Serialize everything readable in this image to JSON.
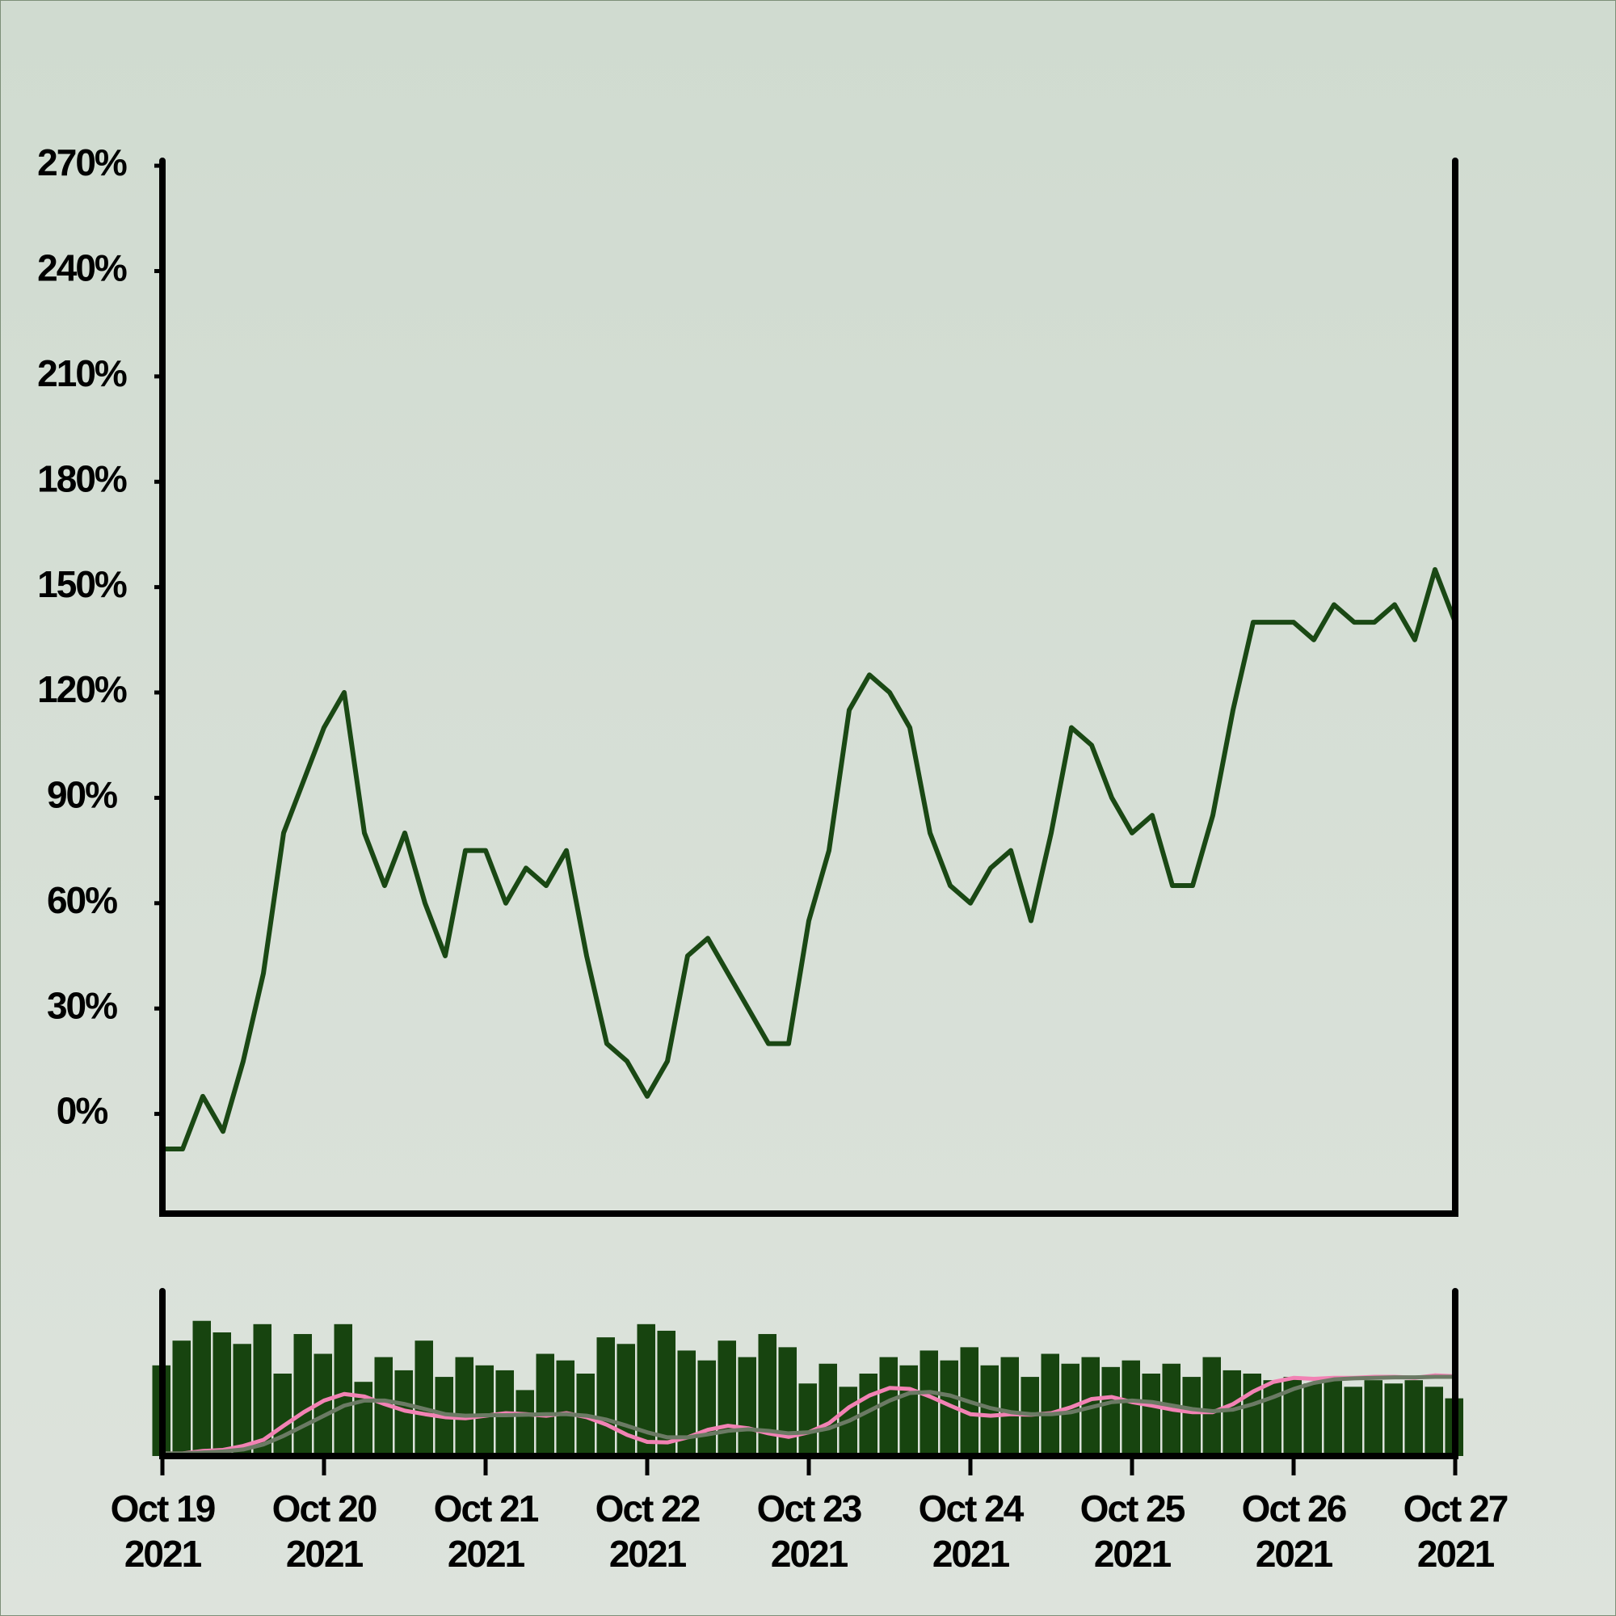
{
  "chart_data": [
    {
      "type": "line",
      "categories": [
        "Oct 19 2021",
        null,
        null,
        null,
        null,
        null,
        null,
        null,
        "Oct 20 2021",
        null,
        null,
        null,
        null,
        null,
        null,
        null,
        "Oct 21 2021",
        null,
        null,
        null,
        null,
        null,
        null,
        null,
        "Oct 22 2021",
        null,
        null,
        null,
        null,
        null,
        null,
        null,
        "Oct 23 2021",
        null,
        null,
        null,
        null,
        null,
        null,
        null,
        "Oct 24 2021",
        null,
        null,
        null,
        null,
        null,
        null,
        null,
        "Oct 25 2021",
        null,
        null,
        null,
        null,
        null,
        null,
        null,
        "Oct 26 2021",
        null,
        null,
        null,
        null,
        null,
        null,
        null,
        "Oct 27 2021"
      ],
      "values": [
        -10,
        -10,
        5,
        -5,
        15,
        40,
        80,
        95,
        110,
        120,
        80,
        65,
        80,
        60,
        45,
        75,
        75,
        60,
        70,
        65,
        75,
        45,
        20,
        15,
        5,
        15,
        45,
        50,
        40,
        30,
        20,
        20,
        55,
        75,
        115,
        125,
        120,
        110,
        80,
        65,
        60,
        70,
        75,
        55,
        80,
        110,
        105,
        90,
        80,
        85,
        65,
        65,
        85,
        115,
        140,
        140,
        140,
        135,
        145,
        140,
        140,
        145,
        135,
        155,
        140
      ],
      "color": "#1a4814",
      "ylim": [
        -28.4,
        271.4
      ],
      "yticks": [
        {
          "value": 0,
          "label": "0%"
        },
        {
          "value": 30,
          "label": "30%"
        },
        {
          "value": 60,
          "label": "60%"
        },
        {
          "value": 90,
          "label": "90%"
        },
        {
          "value": 120,
          "label": "120%"
        },
        {
          "value": 150,
          "label": "150%"
        },
        {
          "value": 180,
          "label": "180%"
        },
        {
          "value": 210,
          "label": "210%"
        },
        {
          "value": 240,
          "label": "240%"
        },
        {
          "value": 270,
          "label": "270%"
        }
      ]
    },
    {
      "type": "bar",
      "values": [
        55,
        70,
        82,
        75,
        68,
        80,
        50,
        74,
        62,
        80,
        45,
        60,
        52,
        70,
        48,
        60,
        55,
        52,
        40,
        62,
        58,
        50,
        72,
        68,
        80,
        76,
        64,
        58,
        70,
        60,
        74,
        66,
        44,
        56,
        42,
        50,
        60,
        55,
        64,
        58,
        66,
        55,
        60,
        48,
        62,
        56,
        60,
        54,
        58,
        50,
        56,
        48,
        60,
        52,
        50,
        46,
        48,
        44,
        46,
        42,
        46,
        44,
        46,
        42,
        35
      ],
      "color": "#17440f",
      "ylim": [
        0,
        100
      ],
      "series": [
        {
          "color": "#f282b4",
          "axis": "y2",
          "values": [
            -10,
            -10,
            -5,
            -3,
            5,
            17,
            45,
            72,
            95,
            108,
            103,
            88,
            75,
            68,
            62,
            60,
            65,
            70,
            68,
            65,
            70,
            62,
            47,
            27,
            13,
            12,
            22,
            37,
            45,
            40,
            30,
            23,
            32,
            50,
            82,
            105,
            120,
            118,
            103,
            85,
            68,
            65,
            68,
            67,
            70,
            82,
            98,
            102,
            92,
            85,
            77,
            72,
            72,
            88,
            113,
            132,
            140,
            138,
            140,
            140,
            142,
            142,
            140,
            145,
            143
          ]
        },
        {
          "color": "#6b7a64",
          "axis": "y2",
          "values": [
            -10,
            -10,
            -8,
            -6,
            -2,
            8,
            25,
            45,
            65,
            85,
            95,
            95,
            88,
            78,
            68,
            65,
            66,
            66,
            67,
            68,
            68,
            65,
            57,
            45,
            32,
            22,
            22,
            28,
            35,
            38,
            35,
            30,
            32,
            40,
            55,
            75,
            95,
            110,
            112,
            105,
            92,
            80,
            72,
            68,
            68,
            72,
            82,
            92,
            95,
            92,
            85,
            78,
            74,
            77,
            88,
            102,
            118,
            130,
            137,
            139,
            140,
            141,
            141,
            142,
            142
          ]
        }
      ],
      "y2lim": [
        -15,
        312
      ]
    }
  ]
}
